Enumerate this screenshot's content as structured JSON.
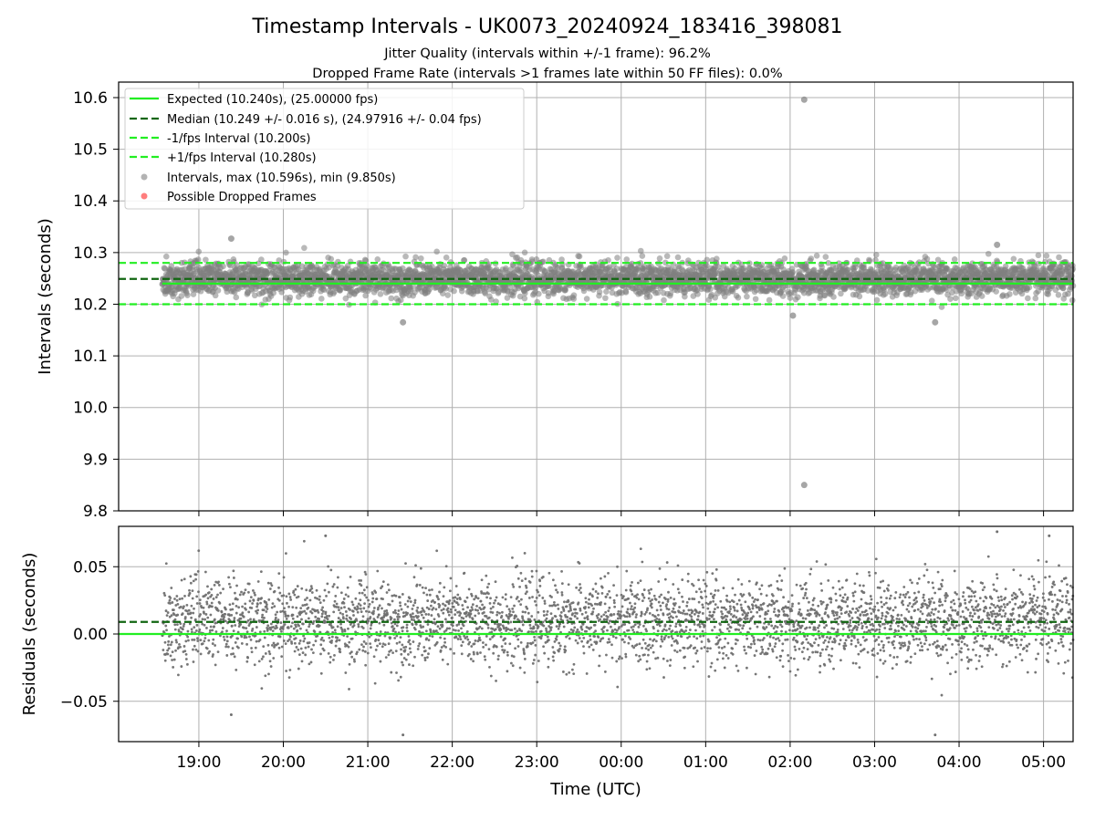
{
  "chart_data": [
    {
      "type": "scatter",
      "title": "Timestamp Intervals - UK0073_20240924_183416_398081",
      "subtitle_lines": [
        "Jitter Quality (intervals within +/-1 frame): 96.2%",
        "Dropped Frame Rate (intervals >1 frames late within 50 FF files): 0.0%"
      ],
      "xlabel": "",
      "ylabel": "Intervals (seconds)",
      "xlim": [
        "18:03",
        "05:21"
      ],
      "ylim": [
        9.8,
        10.63
      ],
      "yticks": [
        9.8,
        9.9,
        10.0,
        10.1,
        10.2,
        10.3,
        10.4,
        10.5,
        10.6
      ],
      "ytick_labels": [
        "9.8",
        "9.9",
        "10.0",
        "10.1",
        "10.2",
        "10.3",
        "10.4",
        "10.5",
        "10.6"
      ],
      "grid": true,
      "legend_position": "top-left",
      "legend": [
        "Expected (10.240s), (25.00000 fps)",
        "Median (10.249 +/- 0.016 s), (24.97916 +/- 0.04 fps)",
        "-1/fps Interval (10.200s)",
        "+1/fps Interval (10.280s)",
        "Intervals, max (10.596s), min (9.850s)",
        "Possible Dropped Frames"
      ],
      "reference_lines": [
        {
          "value": 10.24,
          "style": "solid",
          "color": "#22ee22"
        },
        {
          "value": 10.249,
          "style": "dashed",
          "color": "#116611"
        },
        {
          "value": 10.2,
          "style": "dashed",
          "color": "#22ee22"
        },
        {
          "value": 10.28,
          "style": "dashed",
          "color": "#22ee22"
        }
      ],
      "series": [
        {
          "name": "Intervals, max (10.596s), min (9.850s)",
          "color": "#808080",
          "x_start": "18:34",
          "x_end": "05:21",
          "approx_count": 3800,
          "center": 10.249,
          "stdev": 0.016,
          "notable_points": [
            {
              "x": "02:10",
              "y": 10.596
            },
            {
              "x": "02:10",
              "y": 9.85
            },
            {
              "x": "19:23",
              "y": 10.327
            },
            {
              "x": "21:25",
              "y": 10.165
            },
            {
              "x": "04:27",
              "y": 10.315
            },
            {
              "x": "03:43",
              "y": 10.165
            },
            {
              "x": "02:02",
              "y": 10.178
            }
          ]
        },
        {
          "name": "Possible Dropped Frames",
          "color": "#ff6666",
          "points": []
        }
      ]
    },
    {
      "type": "scatter",
      "xlabel": "Time (UTC)",
      "ylabel": "Residuals (seconds)",
      "xlim": [
        "18:03",
        "05:21"
      ],
      "ylim": [
        -0.08,
        0.08
      ],
      "xticks": [
        "19:00",
        "20:00",
        "21:00",
        "22:00",
        "23:00",
        "00:00",
        "01:00",
        "02:00",
        "03:00",
        "04:00",
        "05:00"
      ],
      "yticks": [
        -0.05,
        0.0,
        0.05
      ],
      "ytick_labels": [
        "−0.05",
        "0.00",
        "0.05"
      ],
      "grid": true,
      "reference_lines": [
        {
          "value": 0.0,
          "style": "solid",
          "color": "#22ee22"
        },
        {
          "value": 0.009,
          "style": "dashed",
          "color": "#116611"
        }
      ],
      "series": [
        {
          "name": "",
          "color": "#707070",
          "x_start": "18:34",
          "x_end": "05:21",
          "approx_count": 3800,
          "center": 0.009,
          "stdev": 0.016,
          "notable_points": [
            {
              "x": "20:30",
              "y": 0.073
            },
            {
              "x": "21:25",
              "y": -0.075
            },
            {
              "x": "04:27",
              "y": 0.076
            },
            {
              "x": "03:43",
              "y": -0.075
            },
            {
              "x": "05:04",
              "y": 0.073
            },
            {
              "x": "19:23",
              "y": -0.06
            }
          ]
        }
      ]
    }
  ],
  "colors": {
    "expected": "#22ee22",
    "median": "#116611",
    "points": "#808080",
    "dropped": "#ff6666",
    "grid": "#b0b0b0"
  }
}
